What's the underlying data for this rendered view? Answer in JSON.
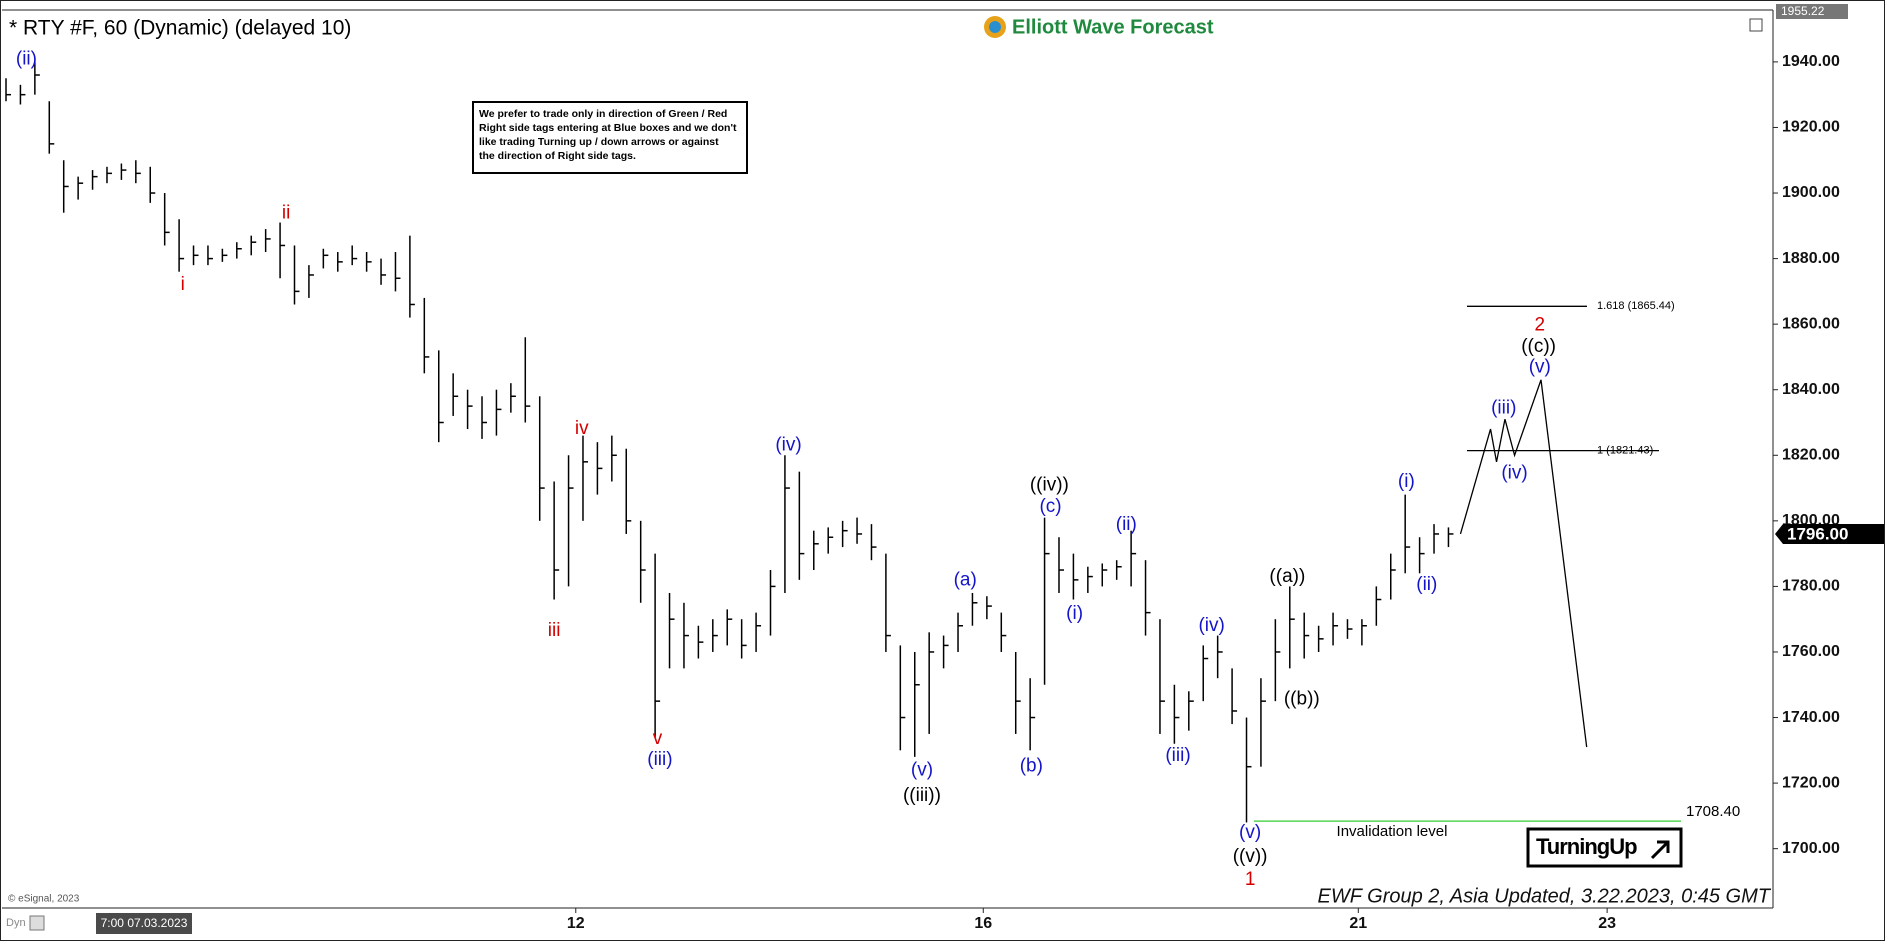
{
  "chart_data": {
    "type": "ohlc",
    "title": "* RTY #F, 60 (Dynamic) (delayed 10)",
    "brand": "Elliott Wave Forecast",
    "notice": {
      "lines": [
        "We prefer to trade only in direction of Green / Red",
        "Right side tags entering at Blue boxes and we don't",
        "like trading Turning up / down arrows or against",
        "the direction of Right side tags."
      ]
    },
    "copyright": "© eSignal, 2023",
    "mode": "Dyn",
    "cursor_date": "7:00 07.03.2023",
    "footer": "EWF Group 2, Asia Updated, 3.22.2023, 0:45 GMT",
    "turning_label": "TurningUp",
    "xlim": [
      0,
      147.5
    ],
    "ylim": [
      1681.9,
      1955.22
    ],
    "yticks": [
      {
        "value": 1700,
        "label": "1700.00"
      },
      {
        "value": 1720,
        "label": "1720.00"
      },
      {
        "value": 1740,
        "label": "1740.00"
      },
      {
        "value": 1760,
        "label": "1760.00"
      },
      {
        "value": 1780,
        "label": "1780.00"
      },
      {
        "value": 1800,
        "label": "1800.00"
      },
      {
        "value": 1820,
        "label": "1820.00"
      },
      {
        "value": 1840,
        "label": "1840.00"
      },
      {
        "value": 1860,
        "label": "1860.00"
      },
      {
        "value": 1880,
        "label": "1880.00"
      },
      {
        "value": 1900,
        "label": "1900.00"
      },
      {
        "value": 1920,
        "label": "1920.00"
      },
      {
        "value": 1940,
        "label": "1940.00"
      }
    ],
    "xticks": [
      {
        "value": 47.9,
        "label": "12"
      },
      {
        "value": 81.8,
        "label": "16"
      },
      {
        "value": 113.0,
        "label": "21"
      },
      {
        "value": 133.7,
        "label": "23"
      }
    ],
    "top_tag": {
      "value": 1955.22,
      "label": "1955.22"
    },
    "last_price": {
      "value": 1796,
      "label": "1796.00"
    },
    "bar_color": "#000000",
    "x": [
      0.5,
      1.7,
      2.9,
      4.1,
      5.3,
      6.5,
      7.7,
      8.9,
      10.1,
      11.3,
      12.5,
      13.7,
      14.9,
      16.1,
      17.3,
      18.5,
      19.7,
      20.9,
      22.1,
      23.3,
      24.5,
      25.7,
      26.9,
      28.1,
      29.3,
      30.5,
      31.7,
      32.9,
      34.1,
      35.3,
      36.5,
      37.7,
      38.9,
      40.1,
      41.3,
      42.5,
      43.7,
      44.9,
      46.1,
      47.3,
      48.5,
      49.7,
      50.9,
      52.1,
      53.3,
      54.5,
      55.7,
      56.9,
      58.1,
      59.3,
      60.5,
      61.7,
      62.9,
      64.1,
      65.3,
      66.5,
      67.7,
      68.9,
      70.1,
      71.3,
      72.5,
      73.7,
      74.9,
      76.1,
      77.3,
      78.5,
      79.7,
      80.9,
      82.1,
      83.3,
      84.5,
      85.7,
      86.9,
      88.1,
      89.3,
      90.5,
      91.7,
      92.9,
      94.1,
      95.3,
      96.5,
      97.7,
      98.9,
      100.1,
      101.3,
      102.5,
      103.7,
      104.9,
      106.1,
      107.3,
      108.5,
      109.7,
      110.9,
      112.1,
      113.3,
      114.5,
      115.7,
      116.9,
      118.1,
      119.3,
      120.5
    ],
    "high": [
      1935,
      1933,
      1940,
      1928,
      1910,
      1905,
      1907,
      1908,
      1909,
      1910,
      1908,
      1900,
      1892,
      1884,
      1884,
      1883,
      1885,
      1887,
      1889,
      1891,
      1884,
      1878,
      1883,
      1882,
      1884,
      1882,
      1880,
      1882,
      1887,
      1868,
      1852,
      1845,
      1840,
      1838,
      1840,
      1842,
      1856,
      1838,
      1812,
      1820,
      1826,
      1824,
      1826,
      1822,
      1800,
      1790,
      1778,
      1775,
      1768,
      1770,
      1773,
      1770,
      1772,
      1785,
      1820,
      1815,
      1797,
      1798,
      1800,
      1801,
      1799,
      1790,
      1762,
      1760,
      1766,
      1765,
      1772,
      1778,
      1777,
      1772,
      1760,
      1752,
      1801,
      1795,
      1790,
      1786,
      1787,
      1788,
      1797,
      1788,
      1770,
      1750,
      1748,
      1762,
      1765,
      1755,
      1740,
      1752,
      1770,
      1780,
      1772,
      1768,
      1772,
      1770,
      1770,
      1780,
      1790,
      1808,
      1795,
      1799,
      1798
    ],
    "low": [
      1928,
      1927,
      1930,
      1912,
      1894,
      1898,
      1901,
      1903,
      1904,
      1903,
      1897,
      1884,
      1876,
      1878,
      1878,
      1879,
      1880,
      1881,
      1882,
      1874,
      1866,
      1868,
      1877,
      1876,
      1878,
      1876,
      1872,
      1870,
      1862,
      1845,
      1824,
      1832,
      1828,
      1825,
      1826,
      1833,
      1830,
      1800,
      1776,
      1780,
      1800,
      1808,
      1812,
      1796,
      1775,
      1734,
      1755,
      1755,
      1758,
      1760,
      1762,
      1758,
      1760,
      1765,
      1778,
      1782,
      1785,
      1790,
      1792,
      1793,
      1788,
      1760,
      1730,
      1728,
      1735,
      1755,
      1760,
      1768,
      1770,
      1760,
      1735,
      1730,
      1750,
      1778,
      1776,
      1778,
      1780,
      1782,
      1780,
      1765,
      1735,
      1732,
      1736,
      1745,
      1752,
      1738,
      1708,
      1725,
      1745,
      1755,
      1758,
      1760,
      1762,
      1764,
      1762,
      1768,
      1776,
      1784,
      1784,
      1790,
      1792
    ],
    "close": [
      1930,
      1930,
      1936,
      1915,
      1902,
      1903,
      1905,
      1906,
      1907,
      1906,
      1900,
      1888,
      1880,
      1881,
      1880,
      1881,
      1883,
      1885,
      1886,
      1884,
      1870,
      1875,
      1881,
      1879,
      1880,
      1879,
      1875,
      1874,
      1866,
      1850,
      1830,
      1838,
      1835,
      1830,
      1834,
      1838,
      1835,
      1810,
      1785,
      1810,
      1818,
      1816,
      1820,
      1800,
      1785,
      1745,
      1770,
      1765,
      1763,
      1765,
      1770,
      1762,
      1768,
      1780,
      1810,
      1790,
      1793,
      1795,
      1797,
      1796,
      1792,
      1765,
      1740,
      1750,
      1760,
      1762,
      1768,
      1775,
      1774,
      1765,
      1745,
      1740,
      1790,
      1785,
      1782,
      1783,
      1785,
      1786,
      1790,
      1772,
      1745,
      1740,
      1745,
      1758,
      1760,
      1742,
      1725,
      1745,
      1760,
      1770,
      1765,
      1764,
      1768,
      1767,
      1768,
      1776,
      1785,
      1792,
      1790,
      1796,
      1796
    ],
    "projection": {
      "x": [
        121.5,
        124.0,
        124.5,
        125.2,
        126.0,
        128.2,
        132.0
      ],
      "values": [
        1796,
        1828,
        1818,
        1831,
        1820,
        1843,
        1731
      ]
    },
    "levels": [
      {
        "label": "1.618 (1865.44)",
        "value": 1865.44,
        "color": "#000000"
      },
      {
        "label": "1 (1821.43)",
        "value": 1821.43,
        "color": "#000000"
      },
      {
        "label": "1708.40",
        "value": 1708.4,
        "color": "#33cc33",
        "note": "Invalidation level"
      }
    ],
    "annotations": [
      {
        "text": "(ii)",
        "x": 2.2,
        "y": 1940.7,
        "color": "#1414c8"
      },
      {
        "text": "i",
        "x": 15.2,
        "y": 1872,
        "color": "#d40000"
      },
      {
        "text": "ii",
        "x": 23.8,
        "y": 1893.8,
        "color": "#d40000"
      },
      {
        "text": "iii",
        "x": 46.1,
        "y": 1766.4,
        "color": "#d40000"
      },
      {
        "text": "iv",
        "x": 48.4,
        "y": 1828,
        "color": "#d40000"
      },
      {
        "text": "v",
        "x": 54.7,
        "y": 1733.4,
        "color": "#d40000"
      },
      {
        "text": "(iii)",
        "x": 54.9,
        "y": 1727,
        "color": "#1414c8"
      },
      {
        "text": "(iv)",
        "x": 65.6,
        "y": 1823,
        "color": "#1414c8"
      },
      {
        "text": "(v)",
        "x": 76.7,
        "y": 1723.9,
        "color": "#1414c8"
      },
      {
        "text": "((iii))",
        "x": 76.7,
        "y": 1716,
        "color": "#000000"
      },
      {
        "text": "(a)",
        "x": 80.3,
        "y": 1781.8,
        "color": "#1414c8"
      },
      {
        "text": "(b)",
        "x": 85.8,
        "y": 1725,
        "color": "#1414c8"
      },
      {
        "text": "((iv))",
        "x": 87.3,
        "y": 1810.8,
        "color": "#000000"
      },
      {
        "text": "(c)",
        "x": 87.4,
        "y": 1804.2,
        "color": "#1414c8"
      },
      {
        "text": "(i)",
        "x": 89.4,
        "y": 1771.6,
        "color": "#1414c8"
      },
      {
        "text": "(ii)",
        "x": 93.7,
        "y": 1798.7,
        "color": "#1414c8"
      },
      {
        "text": "(iii)",
        "x": 98.0,
        "y": 1728.3,
        "color": "#1414c8"
      },
      {
        "text": "(iv)",
        "x": 100.8,
        "y": 1767.9,
        "color": "#1414c8"
      },
      {
        "text": "(v)",
        "x": 104.0,
        "y": 1704.8,
        "color": "#1414c8"
      },
      {
        "text": "((v))",
        "x": 104.0,
        "y": 1697.4,
        "color": "#000000"
      },
      {
        "text": "1",
        "x": 104.0,
        "y": 1690.5,
        "color": "#d40000"
      },
      {
        "text": "((a))",
        "x": 107.1,
        "y": 1782.9,
        "color": "#000000"
      },
      {
        "text": "((b))",
        "x": 108.3,
        "y": 1745.5,
        "color": "#000000"
      },
      {
        "text": "(i)",
        "x": 117.0,
        "y": 1811.9,
        "color": "#1414c8"
      },
      {
        "text": "(ii)",
        "x": 118.7,
        "y": 1780.4,
        "color": "#1414c8"
      },
      {
        "text": "(iii)",
        "x": 125.1,
        "y": 1834.3,
        "color": "#1414c8"
      },
      {
        "text": "(iv)",
        "x": 126.0,
        "y": 1814.5,
        "color": "#1414c8"
      },
      {
        "text": "(v)",
        "x": 128.1,
        "y": 1846.8,
        "color": "#1414c8"
      },
      {
        "text": "((c))",
        "x": 128.0,
        "y": 1853,
        "color": "#000000"
      },
      {
        "text": "2",
        "x": 128.1,
        "y": 1859.6,
        "color": "#d40000"
      }
    ]
  }
}
